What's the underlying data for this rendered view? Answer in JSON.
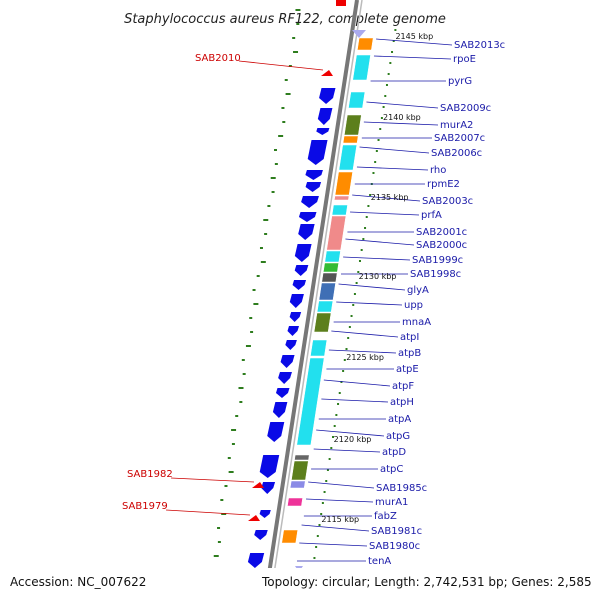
{
  "title": "Staphylococcus aureus RF122, complete genome",
  "footer": {
    "accession": "Accession: NC_007622",
    "topology": "Topology: circular; Length: 2,742,531 bp; Genes: 2,585"
  },
  "kbp_ticks": [
    "2145 kbp",
    "2140 kbp",
    "2135 kbp",
    "2130 kbp",
    "2125 kbp",
    "2120 kbp",
    "2115 kbp"
  ],
  "gene_labels": [
    "SAB2013c",
    "rpoE",
    "pyrG",
    "SAB2009c",
    "murA2",
    "SAB2007c",
    "SAB2006c",
    "rho",
    "rpmE2",
    "SAB2003c",
    "prfA",
    "SAB2001c",
    "SAB2000c",
    "SAB1999c",
    "SAB1998c",
    "glyA",
    "upp",
    "mnaA",
    "atpI",
    "atpB",
    "atpE",
    "atpF",
    "atpH",
    "atpA",
    "atpG",
    "atpD",
    "atpC",
    "SAB1985c",
    "murA1",
    "fabZ",
    "SAB1981c",
    "SAB1980c",
    "tenA"
  ],
  "red_labels": [
    "SAB2010",
    "SAB1982",
    "SAB1979"
  ],
  "colors": {
    "backbone": "#777777",
    "cds_arrow": "#0a0ae6",
    "label_blue": "#1a1aa8",
    "label_red": "#cc0000",
    "tick_green": "#2e7d1e",
    "cyan": "#22e0ee",
    "orange": "#ff8c00",
    "olive": "#5c7f1c",
    "pink": "#f08a8a",
    "steel": "#3f6fb5",
    "green": "#33bb33",
    "magenta": "#ee3399"
  }
}
